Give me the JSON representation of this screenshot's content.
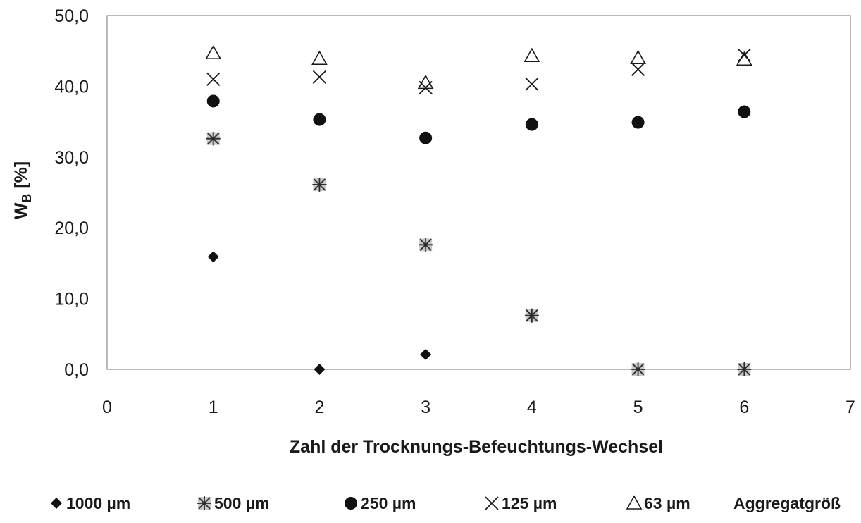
{
  "chart_data": {
    "type": "scatter",
    "xlabel": "Zahl der Trocknungs-Befeuchtungs-Wechsel",
    "ylabel_main": "W",
    "ylabel_sub": "B",
    "ylabel_unit": " [%]",
    "xlim": [
      0,
      7
    ],
    "ylim": [
      0,
      50
    ],
    "x_ticks": [
      "0",
      "1",
      "2",
      "3",
      "4",
      "5",
      "6",
      "7"
    ],
    "y_ticks": [
      "0,0",
      "10,0",
      "20,0",
      "30,0",
      "40,0",
      "50,0"
    ],
    "grid": false,
    "legend_position": "bottom",
    "legend_suffix": "Aggregatgröß",
    "series": [
      {
        "name": "1000 µm",
        "marker": "diamond",
        "color": "#1a1a1a",
        "points": [
          [
            1,
            15.9
          ],
          [
            2,
            0.0
          ],
          [
            3,
            2.1
          ]
        ]
      },
      {
        "name": "500 µm",
        "marker": "asterisk-box",
        "color": "#3a3a3a",
        "points": [
          [
            1,
            32.6
          ],
          [
            2,
            26.1
          ],
          [
            3,
            17.6
          ],
          [
            4,
            7.6
          ],
          [
            5,
            0.0
          ],
          [
            6,
            0.0
          ]
        ]
      },
      {
        "name": "250 µm",
        "marker": "circle",
        "color": "#1a1a1a",
        "points": [
          [
            1,
            37.9
          ],
          [
            2,
            35.3
          ],
          [
            3,
            32.7
          ],
          [
            4,
            34.6
          ],
          [
            5,
            34.9
          ],
          [
            6,
            36.4
          ]
        ]
      },
      {
        "name": "125 µm",
        "marker": "x",
        "color": "#1a1a1a",
        "points": [
          [
            1,
            41.0
          ],
          [
            2,
            41.3
          ],
          [
            3,
            39.8
          ],
          [
            4,
            40.3
          ],
          [
            5,
            42.4
          ],
          [
            6,
            44.4
          ]
        ]
      },
      {
        "name": "63 µm",
        "marker": "triangle",
        "color": "#1a1a1a",
        "points": [
          [
            1,
            44.7
          ],
          [
            2,
            43.9
          ],
          [
            3,
            40.5
          ],
          [
            4,
            44.3
          ],
          [
            5,
            44.0
          ],
          [
            6,
            43.8
          ]
        ]
      }
    ]
  }
}
